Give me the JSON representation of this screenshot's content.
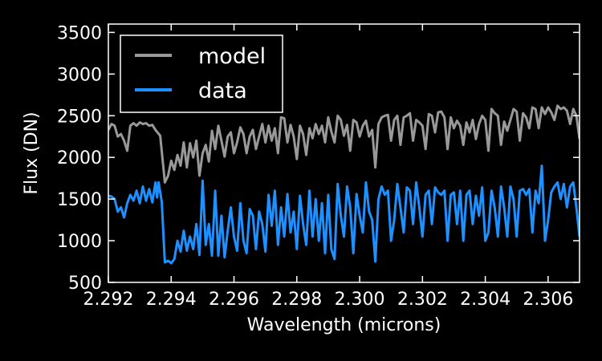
{
  "chart_data": {
    "type": "line",
    "title": "",
    "xlabel": "Wavelength (microns)",
    "ylabel": "Flux (DN)",
    "xlim": [
      2.292,
      2.307
    ],
    "ylim": [
      500,
      3600
    ],
    "xticks": [
      2.292,
      2.294,
      2.296,
      2.298,
      2.3,
      2.302,
      2.304,
      2.306
    ],
    "xtick_labels": [
      "2.292",
      "2.294",
      "2.296",
      "2.298",
      "2.300",
      "2.302",
      "2.304",
      "2.306"
    ],
    "yticks": [
      500,
      1000,
      1500,
      2000,
      2500,
      3000,
      3500
    ],
    "ytick_labels": [
      "500",
      "1000",
      "1500",
      "2000",
      "2500",
      "3000",
      "3500"
    ],
    "grid": false,
    "legend_position": "top-left",
    "series": [
      {
        "name": "model",
        "color": "#999999",
        "points": [
          [
            2.292,
            2330
          ],
          [
            2.2921,
            2400
          ],
          [
            2.2922,
            2380
          ],
          [
            2.2923,
            2250
          ],
          [
            2.2924,
            2280
          ],
          [
            2.2925,
            2200
          ],
          [
            2.2926,
            2080
          ],
          [
            2.2927,
            2380
          ],
          [
            2.2928,
            2410
          ],
          [
            2.2929,
            2380
          ],
          [
            2.293,
            2420
          ],
          [
            2.2931,
            2400
          ],
          [
            2.2932,
            2410
          ],
          [
            2.2933,
            2380
          ],
          [
            2.2934,
            2390
          ],
          [
            2.2935,
            2330
          ],
          [
            2.29365,
            2260
          ],
          [
            2.2938,
            1700
          ],
          [
            2.2939,
            1780
          ],
          [
            2.294,
            1960
          ],
          [
            2.2941,
            1850
          ],
          [
            2.2942,
            2030
          ],
          [
            2.2943,
            1900
          ],
          [
            2.2944,
            2180
          ],
          [
            2.2945,
            1880
          ],
          [
            2.2946,
            2170
          ],
          [
            2.2947,
            2000
          ],
          [
            2.2948,
            2200
          ],
          [
            2.2949,
            1780
          ],
          [
            2.295,
            2050
          ],
          [
            2.2951,
            2150
          ],
          [
            2.2952,
            1950
          ],
          [
            2.2953,
            2320
          ],
          [
            2.2954,
            2100
          ],
          [
            2.2955,
            2380
          ],
          [
            2.2956,
            2200
          ],
          [
            2.2957,
            2010
          ],
          [
            2.2958,
            2250
          ],
          [
            2.2959,
            2300
          ],
          [
            2.296,
            2050
          ],
          [
            2.2961,
            2180
          ],
          [
            2.2962,
            2360
          ],
          [
            2.2963,
            2280
          ],
          [
            2.2964,
            2050
          ],
          [
            2.2965,
            2250
          ],
          [
            2.2966,
            2330
          ],
          [
            2.2967,
            2100
          ],
          [
            2.2968,
            2250
          ],
          [
            2.2969,
            2400
          ],
          [
            2.297,
            2180
          ],
          [
            2.2971,
            2380
          ],
          [
            2.2972,
            2200
          ],
          [
            2.2973,
            2350
          ],
          [
            2.2974,
            2050
          ],
          [
            2.2975,
            2480
          ],
          [
            2.2976,
            2470
          ],
          [
            2.2977,
            2180
          ],
          [
            2.2978,
            2390
          ],
          [
            2.2979,
            2250
          ],
          [
            2.298,
            1980
          ],
          [
            2.2981,
            2380
          ],
          [
            2.2982,
            2280
          ],
          [
            2.2983,
            2030
          ],
          [
            2.2984,
            2350
          ],
          [
            2.2985,
            2230
          ],
          [
            2.2986,
            2400
          ],
          [
            2.2987,
            2280
          ],
          [
            2.2988,
            2380
          ],
          [
            2.2989,
            2180
          ],
          [
            2.299,
            2480
          ],
          [
            2.2991,
            2310
          ],
          [
            2.2992,
            2180
          ],
          [
            2.2993,
            2500
          ],
          [
            2.2994,
            2450
          ],
          [
            2.2995,
            2260
          ],
          [
            2.2996,
            2390
          ],
          [
            2.2997,
            2080
          ],
          [
            2.2998,
            2450
          ],
          [
            2.2999,
            2420
          ],
          [
            2.3,
            2250
          ],
          [
            2.3001,
            2380
          ],
          [
            2.3002,
            2440
          ],
          [
            2.3003,
            2250
          ],
          [
            2.3004,
            2330
          ],
          [
            2.3005,
            1880
          ],
          [
            2.3006,
            2400
          ],
          [
            2.3007,
            2480
          ],
          [
            2.3008,
            2500
          ],
          [
            2.3009,
            2510
          ],
          [
            2.301,
            2200
          ],
          [
            2.3011,
            2450
          ],
          [
            2.3012,
            2500
          ],
          [
            2.3013,
            2150
          ],
          [
            2.3014,
            2480
          ],
          [
            2.3015,
            2500
          ],
          [
            2.3016,
            2530
          ],
          [
            2.3017,
            2200
          ],
          [
            2.3018,
            2450
          ],
          [
            2.3019,
            2420
          ],
          [
            2.302,
            2380
          ],
          [
            2.3021,
            2100
          ],
          [
            2.3022,
            2520
          ],
          [
            2.3023,
            2500
          ],
          [
            2.3024,
            2300
          ],
          [
            2.3025,
            2540
          ],
          [
            2.3026,
            2550
          ],
          [
            2.3027,
            2480
          ],
          [
            2.3028,
            2100
          ],
          [
            2.3029,
            2480
          ],
          [
            2.303,
            2350
          ],
          [
            2.3031,
            2440
          ],
          [
            2.3032,
            2380
          ],
          [
            2.3033,
            2150
          ],
          [
            2.3034,
            2420
          ],
          [
            2.3035,
            2300
          ],
          [
            2.3036,
            2450
          ],
          [
            2.3037,
            2220
          ],
          [
            2.3038,
            2400
          ],
          [
            2.3039,
            2500
          ],
          [
            2.304,
            2450
          ],
          [
            2.3041,
            2080
          ],
          [
            2.3042,
            2580
          ],
          [
            2.3043,
            2530
          ],
          [
            2.3044,
            2500
          ],
          [
            2.3045,
            2150
          ],
          [
            2.3046,
            2430
          ],
          [
            2.3047,
            2320
          ],
          [
            2.3048,
            2450
          ],
          [
            2.3049,
            2580
          ],
          [
            2.305,
            2550
          ],
          [
            2.3051,
            2200
          ],
          [
            2.3052,
            2530
          ],
          [
            2.3053,
            2480
          ],
          [
            2.3054,
            2350
          ],
          [
            2.3055,
            2600
          ],
          [
            2.3056,
            2580
          ],
          [
            2.3057,
            2350
          ],
          [
            2.3058,
            2600
          ],
          [
            2.3059,
            2520
          ],
          [
            2.306,
            2600
          ],
          [
            2.3061,
            2540
          ],
          [
            2.3062,
            2450
          ],
          [
            2.3063,
            2620
          ],
          [
            2.3064,
            2580
          ],
          [
            2.3065,
            2600
          ],
          [
            2.3066,
            2560
          ],
          [
            2.3067,
            2400
          ],
          [
            2.3068,
            2580
          ],
          [
            2.3069,
            2500
          ],
          [
            2.307,
            2220
          ]
        ]
      },
      {
        "name": "data",
        "color": "#1e90ff",
        "points": [
          [
            2.292,
            1540
          ],
          [
            2.2921,
            1530
          ],
          [
            2.2922,
            1500
          ],
          [
            2.2923,
            1350
          ],
          [
            2.2924,
            1400
          ],
          [
            2.2925,
            1280
          ],
          [
            2.2926,
            1450
          ],
          [
            2.2927,
            1550
          ],
          [
            2.2928,
            1480
          ],
          [
            2.2929,
            1600
          ],
          [
            2.293,
            1450
          ],
          [
            2.2931,
            1650
          ],
          [
            2.2932,
            1480
          ],
          [
            2.2933,
            1620
          ],
          [
            2.2934,
            1460
          ],
          [
            2.2935,
            1700
          ],
          [
            2.29355,
            1520
          ],
          [
            2.2936,
            1700
          ],
          [
            2.2937,
            1470
          ],
          [
            2.2938,
            740
          ],
          [
            2.2939,
            760
          ],
          [
            2.294,
            730
          ],
          [
            2.2941,
            780
          ],
          [
            2.2942,
            1000
          ],
          [
            2.2943,
            870
          ],
          [
            2.2944,
            1120
          ],
          [
            2.2945,
            880
          ],
          [
            2.2946,
            1050
          ],
          [
            2.2947,
            900
          ],
          [
            2.2948,
            1200
          ],
          [
            2.2949,
            830
          ],
          [
            2.295,
            1720
          ],
          [
            2.2951,
            950
          ],
          [
            2.2952,
            1200
          ],
          [
            2.2953,
            820
          ],
          [
            2.2954,
            1600
          ],
          [
            2.2955,
            820
          ],
          [
            2.2956,
            1300
          ],
          [
            2.2957,
            800
          ],
          [
            2.2958,
            1120
          ],
          [
            2.2959,
            1400
          ],
          [
            2.296,
            1050
          ],
          [
            2.2961,
            880
          ],
          [
            2.2962,
            1450
          ],
          [
            2.2963,
            1000
          ],
          [
            2.2964,
            850
          ],
          [
            2.2965,
            1380
          ],
          [
            2.2966,
            1300
          ],
          [
            2.2967,
            900
          ],
          [
            2.2968,
            1350
          ],
          [
            2.2969,
            1200
          ],
          [
            2.297,
            870
          ],
          [
            2.2971,
            1550
          ],
          [
            2.2972,
            1180
          ],
          [
            2.2973,
            1600
          ],
          [
            2.2974,
            950
          ],
          [
            2.2975,
            1400
          ],
          [
            2.2976,
            1050
          ],
          [
            2.2977,
            1560
          ],
          [
            2.2978,
            1100
          ],
          [
            2.2979,
            1350
          ],
          [
            2.298,
            900
          ],
          [
            2.2981,
            1540
          ],
          [
            2.2982,
            1200
          ],
          [
            2.2983,
            950
          ],
          [
            2.2984,
            1600
          ],
          [
            2.2985,
            1050
          ],
          [
            2.2986,
            1500
          ],
          [
            2.2987,
            1000
          ],
          [
            2.2988,
            1450
          ],
          [
            2.2989,
            850
          ],
          [
            2.299,
            1550
          ],
          [
            2.2991,
            900
          ],
          [
            2.2992,
            780
          ],
          [
            2.2993,
            1680
          ],
          [
            2.2994,
            1300
          ],
          [
            2.2995,
            1050
          ],
          [
            2.2996,
            1650
          ],
          [
            2.2997,
            1400
          ],
          [
            2.2998,
            850
          ],
          [
            2.2999,
            1560
          ],
          [
            2.3,
            1300
          ],
          [
            2.3001,
            1100
          ],
          [
            2.3002,
            1700
          ],
          [
            2.3003,
            1350
          ],
          [
            2.3004,
            1250
          ],
          [
            2.3005,
            750
          ],
          [
            2.3006,
            1500
          ],
          [
            2.3007,
            1650
          ],
          [
            2.3008,
            1550
          ],
          [
            2.3009,
            1600
          ],
          [
            2.301,
            1000
          ],
          [
            2.3011,
            1250
          ],
          [
            2.3012,
            1680
          ],
          [
            2.3013,
            1400
          ],
          [
            2.3014,
            1100
          ],
          [
            2.3015,
            1640
          ],
          [
            2.3016,
            1600
          ],
          [
            2.3017,
            1200
          ],
          [
            2.3018,
            1700
          ],
          [
            2.3019,
            1400
          ],
          [
            2.302,
            1050
          ],
          [
            2.3021,
            1550
          ],
          [
            2.3022,
            1600
          ],
          [
            2.3023,
            1200
          ],
          [
            2.3024,
            1640
          ],
          [
            2.3025,
            1580
          ],
          [
            2.3026,
            1550
          ],
          [
            2.3027,
            1600
          ],
          [
            2.3028,
            1000
          ],
          [
            2.3029,
            1550
          ],
          [
            2.303,
            1580
          ],
          [
            2.3031,
            1200
          ],
          [
            2.3032,
            1600
          ],
          [
            2.3033,
            1000
          ],
          [
            2.3034,
            1550
          ],
          [
            2.3035,
            1600
          ],
          [
            2.3036,
            1200
          ],
          [
            2.3037,
            1540
          ],
          [
            2.3038,
            1300
          ],
          [
            2.3039,
            1640
          ],
          [
            2.304,
            1000
          ],
          [
            2.3041,
            1100
          ],
          [
            2.3042,
            1600
          ],
          [
            2.3043,
            1400
          ],
          [
            2.3044,
            1050
          ],
          [
            2.3045,
            1650
          ],
          [
            2.3046,
            1400
          ],
          [
            2.3047,
            1050
          ],
          [
            2.3048,
            1650
          ],
          [
            2.3049,
            1500
          ],
          [
            2.305,
            1050
          ],
          [
            2.3051,
            1600
          ],
          [
            2.3052,
            1620
          ],
          [
            2.3053,
            1550
          ],
          [
            2.3054,
            1620
          ],
          [
            2.3055,
            1100
          ],
          [
            2.3056,
            1600
          ],
          [
            2.3057,
            1450
          ],
          [
            2.3058,
            1900
          ],
          [
            2.3059,
            1000
          ],
          [
            2.306,
            1250
          ],
          [
            2.3061,
            1580
          ],
          [
            2.3062,
            1650
          ],
          [
            2.3063,
            1700
          ],
          [
            2.3064,
            1500
          ],
          [
            2.3065,
            1680
          ],
          [
            2.3066,
            1400
          ],
          [
            2.3067,
            1650
          ],
          [
            2.3068,
            1700
          ],
          [
            2.3069,
            1400
          ],
          [
            2.307,
            1050
          ]
        ]
      }
    ]
  }
}
